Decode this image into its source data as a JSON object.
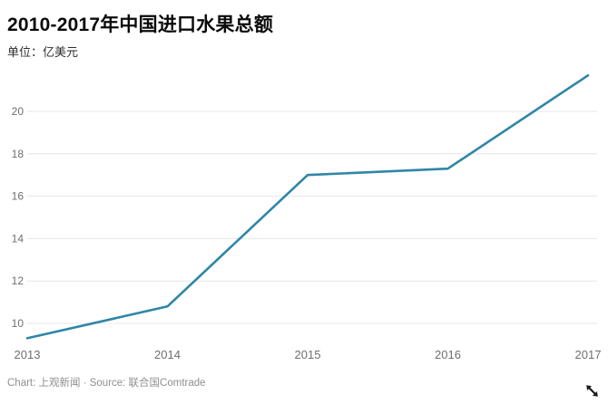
{
  "header": {
    "title": "2010-2017年中国进口水果总额",
    "subtitle": "单位：亿美元"
  },
  "footer": {
    "credit": "Chart: 上观新闻 · Source: 联合国Comtrade"
  },
  "icons": {
    "cursor": "resize-cursor-icon"
  },
  "chart_data": {
    "type": "line",
    "title": "2010-2017年中国进口水果总额",
    "unit_label": "单位：亿美元",
    "x": [
      "2013",
      "2014",
      "2015",
      "2016",
      "2017"
    ],
    "series": [
      {
        "name": "中国进口水果总额",
        "values": [
          9.3,
          10.8,
          17.0,
          17.3,
          21.7
        ]
      }
    ],
    "xlabel": "",
    "ylabel": "亿美元",
    "yticks": [
      10,
      12,
      14,
      16,
      18,
      20
    ],
    "ylim": [
      9.0,
      22.2
    ],
    "grid": true,
    "legend": "none",
    "line_color": "#2f86a7",
    "grid_color": "#e7e7e7",
    "axis_label_color": "#6f6f6f",
    "source": "联合国Comtrade",
    "credit": "上观新闻"
  }
}
